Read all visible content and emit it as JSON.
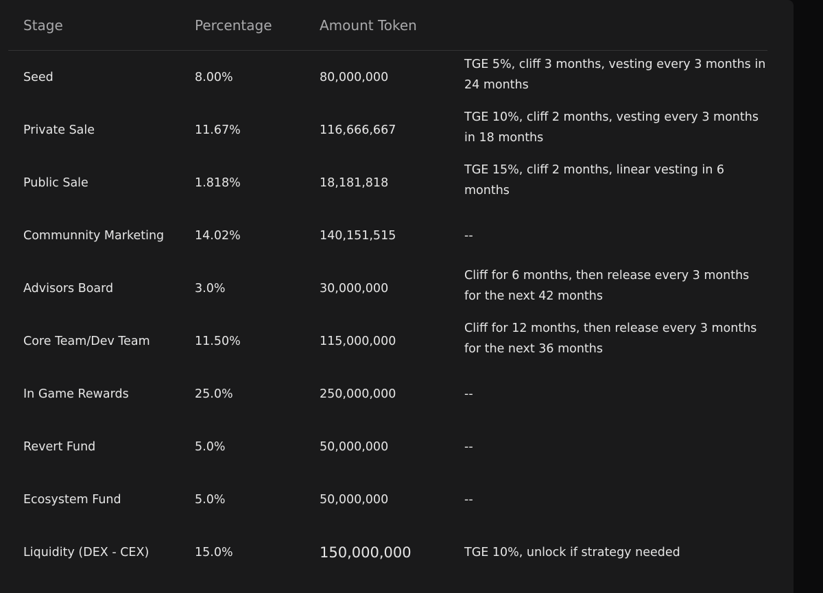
{
  "table": {
    "headers": [
      "Stage",
      "Percentage",
      "Amount Token",
      ""
    ],
    "rows": [
      {
        "stage": "Seed",
        "percentage": "8.00%",
        "amount": "80,000,000",
        "note": "TGE 5%, cliff 3 months, vesting every 3 months in 24 months"
      },
      {
        "stage": "Private Sale",
        "percentage": "11.67%",
        "amount": "116,666,667",
        "note": "TGE 10%, cliff 2 months, vesting every 3 months in 18 months"
      },
      {
        "stage": "Public Sale",
        "percentage": "1.818%",
        "amount": "18,181,818",
        "note": "TGE 15%, cliff 2 months, linear vesting in 6 months"
      },
      {
        "stage": "Communnity Marketing",
        "percentage": "14.02%",
        "amount": "140,151,515",
        "note": "--"
      },
      {
        "stage": "Advisors Board",
        "percentage": "3.0%",
        "amount": "30,000,000",
        "note": "Cliff for 6 months, then release every 3 months for the next 42 months"
      },
      {
        "stage": "Core Team/Dev Team",
        "percentage": "11.50%",
        "amount": "115,000,000",
        "note": "Cliff for 12 months, then release every 3 months for the next 36 months"
      },
      {
        "stage": "In Game Rewards",
        "percentage": "25.0%",
        "amount": "250,000,000",
        "note": "--"
      },
      {
        "stage": "Revert Fund",
        "percentage": "5.0%",
        "amount": "50,000,000",
        "note": "--"
      },
      {
        "stage": "Ecosystem Fund",
        "percentage": "5.0%",
        "amount": "50,000,000",
        "note": "--"
      },
      {
        "stage": "Liquidity (DEX - CEX)",
        "percentage": "15.0%",
        "amount": "150,000,000",
        "note": "TGE 10%, unlock if strategy needed"
      }
    ]
  }
}
